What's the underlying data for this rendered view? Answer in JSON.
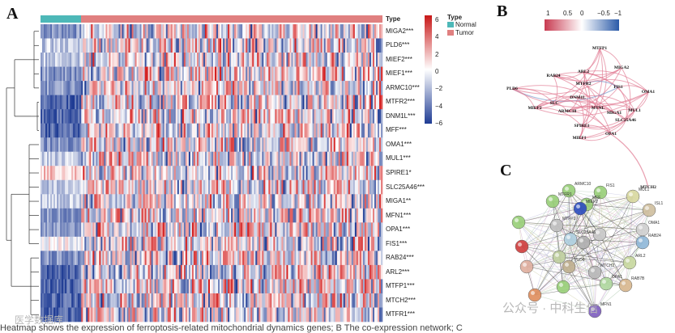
{
  "panels": {
    "a": "A",
    "b": "B",
    "c": "C"
  },
  "chart_data": {
    "type": "heatmap",
    "title": "",
    "annotation_header": "Type",
    "legend_type": {
      "title": "Type",
      "entries": [
        {
          "name": "Normal",
          "color": "#4db8b8"
        },
        {
          "name": "Tumor",
          "color": "#e08080"
        }
      ]
    },
    "color_scale": {
      "min": -6,
      "max": 6,
      "ticks": [
        "6",
        "4",
        "2",
        "0",
        "−2",
        "−4",
        "−6"
      ],
      "low_color": "#1f3c94",
      "mid_color": "#ffffff",
      "high_color": "#d42020"
    },
    "samples": {
      "normal_fraction": 0.12,
      "tumor_fraction": 0.88
    },
    "genes": [
      "MIGA2***",
      "PLD6***",
      "MIEF2***",
      "MIEF1***",
      "ARMC10***",
      "MTFR2***",
      "DNM1L***",
      "MFF***",
      "OMA1***",
      "MUL1***",
      "SPIRE1*",
      "SLC25A46***",
      "MIGA1**",
      "MFN1***",
      "OPA1***",
      "FIS1***",
      "RAB24***",
      "ARL2***",
      "MTFP1***",
      "MTCH2***",
      "MTFR1***"
    ],
    "normal_bias": [
      -2,
      -1,
      -1,
      -2,
      -2,
      -3,
      -3,
      -3,
      -2,
      -1,
      1,
      -1,
      -1,
      -2,
      -2,
      0,
      -2,
      -3,
      -3,
      -3,
      -3
    ]
  },
  "network": {
    "scale_ticks": [
      "1",
      "0.5",
      "0",
      "−0.5",
      "−1"
    ],
    "nodes": [
      "MTFP1",
      "MIGA2",
      "ARL2",
      "RAB24",
      "MTFR2",
      "FIS1",
      "OMA1",
      "PLD6",
      "MIEF2",
      "SLC",
      "DNM1L",
      "ARMC10",
      "MTNL",
      "MIGA1",
      "MUL1",
      "SLC25A46",
      "SPIRE1",
      "OPA1",
      "MIEF1",
      "MTCH2"
    ]
  },
  "string_net": {
    "nodes": [
      "ARMC10",
      "FIS1",
      "MUL1",
      "MTFR1",
      "MFF",
      "MIEF2",
      "ISL1",
      "OMA1",
      "MTFP1",
      "SLC25A46",
      "RAB24",
      "ARL2",
      "MTCH2",
      "PLD6",
      "OPA1",
      "RAB7B",
      "MFN1"
    ]
  },
  "caption": "Heatmap shows the expression of ferroptosis-related mitochondrial dynamics genes; B The co-expression network; C",
  "watermarks": [
    "公众号 · 中科生信",
    "医学数据库"
  ]
}
